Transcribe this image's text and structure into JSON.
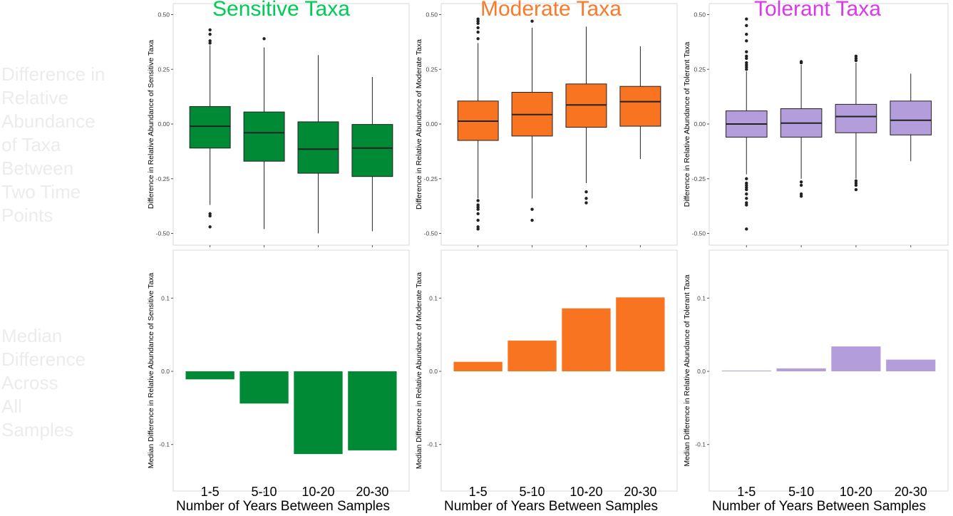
{
  "row_labels": {
    "top": "Difference in\nRelative\nAbundance\nof Taxa\nBetween\nTwo Time\nPoints",
    "bottom": "Median\nDifference\nAcross\nAll\nSamples"
  },
  "columns": [
    {
      "title": "Sensitive Taxa",
      "color": "#00cc55",
      "fill": "#008a36",
      "box_ylabel": "Difference in Relative Abundance of Sensitive Taxa",
      "bar_ylabel": "Median Difference in Relative Abundance of Sensitive Taxa",
      "xlabel": "Number of Years Between Samples"
    },
    {
      "title": "Moderate Taxa",
      "color": "#f97a2a",
      "fill": "#f97420",
      "box_ylabel": "Difference in Relative Abundance of Moderate Taxa",
      "bar_ylabel": "Median Difference in Relative Abundance of Moderate Taxa",
      "xlabel": "Number of Years Between Samples"
    },
    {
      "title": "Tolerant Taxa",
      "color": "#d93ae8",
      "fill": "#b39ddb",
      "box_ylabel": "Difference in Relative Abundance of Tolerant Taxa",
      "bar_ylabel": "Median Difference in Relative Abundance of Tolerant Taxa",
      "xlabel": "Number of Years Between Samples"
    }
  ],
  "chart_data": [
    {
      "type": "boxplot",
      "title": "Sensitive Taxa",
      "ylabel": "Difference in Relative Abundance of Sensitive Taxa",
      "categories": [
        "1-5",
        "5-10",
        "10-20",
        "20-30"
      ],
      "ylim": [
        -0.55,
        0.55
      ],
      "yticks": [
        0.5,
        0.25,
        0.0,
        -0.25,
        -0.5
      ],
      "ytick_labels": [
        "0.50",
        "0.25",
        "0.00",
        "-0.25",
        "-0.50"
      ],
      "boxes": [
        {
          "q1": -0.11,
          "median": -0.01,
          "q3": 0.08,
          "whisker_low": -0.37,
          "whisker_high": 0.36,
          "outliers": [
            0.43,
            0.41,
            0.38,
            0.37,
            -0.41,
            -0.42,
            -0.47
          ]
        },
        {
          "q1": -0.17,
          "median": -0.04,
          "q3": 0.055,
          "whisker_low": -0.48,
          "whisker_high": 0.35,
          "outliers": [
            0.39
          ]
        },
        {
          "q1": -0.225,
          "median": -0.115,
          "q3": 0.01,
          "whisker_low": -0.5,
          "whisker_high": 0.315,
          "outliers": []
        },
        {
          "q1": -0.24,
          "median": -0.11,
          "q3": -0.002,
          "whisker_low": -0.49,
          "whisker_high": 0.215,
          "outliers": []
        }
      ]
    },
    {
      "type": "boxplot",
      "title": "Moderate Taxa",
      "ylabel": "Difference in Relative Abundance of Moderate Taxa",
      "categories": [
        "1-5",
        "5-10",
        "10-20",
        "20-30"
      ],
      "ylim": [
        -0.55,
        0.55
      ],
      "yticks": [
        0.5,
        0.25,
        0.0,
        -0.25,
        -0.5
      ],
      "ytick_labels": [
        "0.50",
        "0.25",
        "0.00",
        "-0.25",
        "-0.50"
      ],
      "boxes": [
        {
          "q1": -0.075,
          "median": 0.013,
          "q3": 0.105,
          "whisker_low": -0.34,
          "whisker_high": 0.37,
          "outliers": [
            0.48,
            0.47,
            0.46,
            0.44,
            0.42,
            0.39,
            -0.35,
            -0.37,
            -0.38,
            -0.39,
            -0.41,
            -0.44,
            -0.47,
            -0.48
          ]
        },
        {
          "q1": -0.055,
          "median": 0.043,
          "q3": 0.145,
          "whisker_low": -0.34,
          "whisker_high": 0.44,
          "outliers": [
            0.47,
            -0.39,
            -0.44
          ]
        },
        {
          "q1": -0.015,
          "median": 0.087,
          "q3": 0.183,
          "whisker_low": -0.27,
          "whisker_high": 0.445,
          "outliers": [
            -0.31,
            -0.34,
            -0.36
          ]
        },
        {
          "q1": -0.01,
          "median": 0.102,
          "q3": 0.172,
          "whisker_low": -0.16,
          "whisker_high": 0.355,
          "outliers": []
        }
      ]
    },
    {
      "type": "boxplot",
      "title": "Tolerant Taxa",
      "ylabel": "Difference in Relative Abundance of Tolerant Taxa",
      "categories": [
        "1-5",
        "5-10",
        "10-20",
        "20-30"
      ],
      "ylim": [
        -0.55,
        0.55
      ],
      "yticks": [
        0.5,
        0.25,
        0.0,
        -0.25,
        -0.5
      ],
      "ytick_labels": [
        "0.50",
        "0.25",
        "0.00",
        "-0.25",
        "-0.50"
      ],
      "boxes": [
        {
          "q1": -0.06,
          "median": 0.0,
          "q3": 0.06,
          "whisker_low": -0.23,
          "whisker_high": 0.24,
          "outliers": [
            0.48,
            0.45,
            0.41,
            0.38,
            0.33,
            0.31,
            0.3,
            0.28,
            0.27,
            0.26,
            0.25,
            -0.25,
            -0.27,
            -0.28,
            -0.29,
            -0.3,
            -0.32,
            -0.34,
            -0.36,
            -0.37,
            -0.48
          ]
        },
        {
          "q1": -0.06,
          "median": 0.004,
          "q3": 0.07,
          "whisker_low": -0.25,
          "whisker_high": 0.27,
          "outliers": [
            0.285,
            0.28,
            -0.265,
            -0.28,
            -0.32,
            -0.33
          ]
        },
        {
          "q1": -0.04,
          "median": 0.034,
          "q3": 0.09,
          "whisker_low": -0.25,
          "whisker_high": 0.28,
          "outliers": [
            0.31,
            0.3,
            0.29,
            -0.26,
            -0.27,
            -0.28,
            -0.3
          ]
        },
        {
          "q1": -0.05,
          "median": 0.017,
          "q3": 0.105,
          "whisker_low": -0.17,
          "whisker_high": 0.23,
          "outliers": []
        }
      ]
    },
    {
      "type": "bar",
      "ylabel": "Median Difference in Relative Abundance of Sensitive Taxa",
      "categories": [
        "1-5",
        "5-10",
        "10-20",
        "20-30"
      ],
      "values": [
        -0.011,
        -0.044,
        -0.113,
        -0.108
      ],
      "ylim": [
        -0.16,
        0.16
      ],
      "yticks": [
        0.1,
        0.0,
        -0.1
      ],
      "ytick_labels": [
        "0.1",
        "0.0",
        "-0.1"
      ],
      "xlabel": "Number of Years Between Samples"
    },
    {
      "type": "bar",
      "ylabel": "Median Difference in Relative Abundance of Moderate Taxa",
      "categories": [
        "1-5",
        "5-10",
        "10-20",
        "20-30"
      ],
      "values": [
        0.013,
        0.042,
        0.086,
        0.101
      ],
      "ylim": [
        -0.16,
        0.16
      ],
      "yticks": [
        0.1,
        0.0,
        -0.1
      ],
      "ytick_labels": [
        "0.1",
        "0.0",
        "-0.1"
      ],
      "xlabel": "Number of Years Between Samples"
    },
    {
      "type": "bar",
      "ylabel": "Median Difference in Relative Abundance of Tolerant Taxa",
      "categories": [
        "1-5",
        "5-10",
        "10-20",
        "20-30"
      ],
      "values": [
        0.001,
        0.004,
        0.034,
        0.016
      ],
      "ylim": [
        -0.16,
        0.16
      ],
      "yticks": [
        0.1,
        0.0,
        -0.1
      ],
      "ytick_labels": [
        "0.1",
        "0.0",
        "-0.1"
      ],
      "xlabel": "Number of Years Between Samples"
    }
  ]
}
